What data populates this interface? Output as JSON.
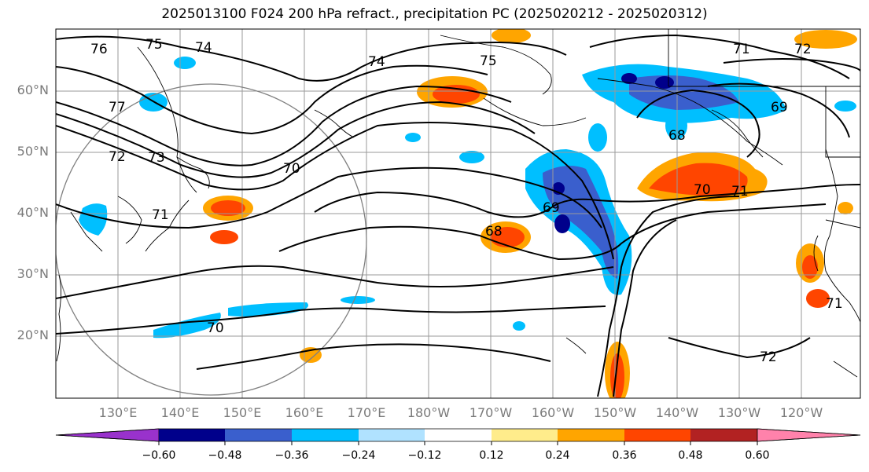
{
  "figure": {
    "title": "2025013100 F024 200 hPa refract., precipitation PC (2025020212 - 2025020312)"
  },
  "map": {
    "lat_labels": [
      "60°N",
      "50°N",
      "40°N",
      "30°N",
      "20°N"
    ],
    "lon_labels": [
      "130°E",
      "140°E",
      "150°E",
      "160°E",
      "170°E",
      "180°W",
      "170°W",
      "160°W",
      "150°W",
      "140°W",
      "130°W",
      "120°W"
    ],
    "contour_labels": [
      "76",
      "75",
      "74",
      "77",
      "72",
      "73",
      "71",
      "74",
      "70",
      "75",
      "71",
      "72",
      "69",
      "68",
      "70",
      "71",
      "69",
      "68",
      "70",
      "72",
      "71"
    ],
    "contour_color": "#000000",
    "gridline_color": "#9a9a9a"
  },
  "colorbar": {
    "tick_labels": [
      "−0.60",
      "−0.48",
      "−0.36",
      "−0.24",
      "−0.12",
      "0.12",
      "0.24",
      "0.36",
      "0.48",
      "0.60"
    ],
    "colors": [
      "#9932cc",
      "#00008b",
      "#3a5fcd",
      "#00bfff",
      "#b0e2ff",
      "#ffffff",
      "#ffec8b",
      "#ffa500",
      "#ff4500",
      "#b22222",
      "#ff82ab"
    ]
  }
}
